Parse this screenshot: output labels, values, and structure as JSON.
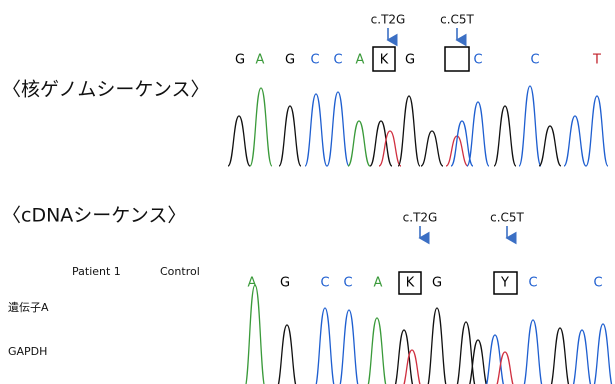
{
  "genomic": {
    "heading": "〈核ゲノムシーケンス〉",
    "mutations": [
      "c.T2G",
      "c.C5T"
    ],
    "bases": [
      {
        "label": "G",
        "color": "#000000"
      },
      {
        "label": "A",
        "color": "#3a9a3a"
      },
      {
        "label": "G",
        "color": "#000000"
      },
      {
        "label": "C",
        "color": "#1f5fd0"
      },
      {
        "label": "C",
        "color": "#1f5fd0"
      },
      {
        "label": "A",
        "color": "#3a9a3a"
      },
      {
        "label": "K",
        "color": "#000000"
      },
      {
        "label": "G",
        "color": "#000000"
      },
      {
        "label": "C",
        "color": "#1f5fd0"
      },
      {
        "label": "C",
        "color": "#1f5fd0"
      },
      {
        "label": "T",
        "color": "#c0202a"
      }
    ]
  },
  "cdna": {
    "heading": "〈cDNAシーケンス〉",
    "mutations": [
      "c.T2G",
      "c.C5T"
    ],
    "bases": [
      {
        "label": "A",
        "color": "#3a9a3a"
      },
      {
        "label": "G",
        "color": "#000000"
      },
      {
        "label": "C",
        "color": "#1f5fd0"
      },
      {
        "label": "C",
        "color": "#1f5fd0"
      },
      {
        "label": "A",
        "color": "#3a9a3a"
      },
      {
        "label": "K",
        "color": "#000000"
      },
      {
        "label": "G",
        "color": "#000000"
      },
      {
        "label": "Y",
        "color": "#000000"
      },
      {
        "label": "C",
        "color": "#1f5fd0"
      },
      {
        "label": "C",
        "color": "#1f5fd0"
      }
    ]
  },
  "gel": {
    "columns": [
      "Patient 1",
      "Control"
    ],
    "rows": [
      "遺伝子A",
      "GAPDH"
    ]
  }
}
